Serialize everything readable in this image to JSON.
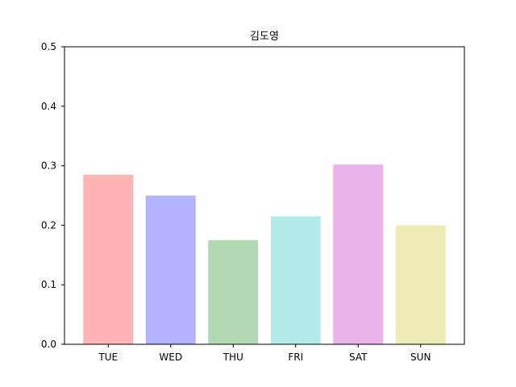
{
  "chart_data": {
    "type": "bar",
    "title": "김도영",
    "xlabel": "",
    "ylabel": "",
    "categories": [
      "TUE",
      "WED",
      "THU",
      "FRI",
      "SAT",
      "SUN"
    ],
    "values": [
      0.285,
      0.25,
      0.175,
      0.215,
      0.302,
      0.2
    ],
    "colors": [
      "#ffb3b3",
      "#b3b3ff",
      "#b3d9b3",
      "#b3ebeb",
      "#ebb3eb",
      "#ebebb3"
    ],
    "ylim": [
      0,
      0.5
    ],
    "yticks": [
      "0.0",
      "0.1",
      "0.2",
      "0.3",
      "0.4",
      "0.5"
    ],
    "grid": false,
    "legend": "none"
  }
}
